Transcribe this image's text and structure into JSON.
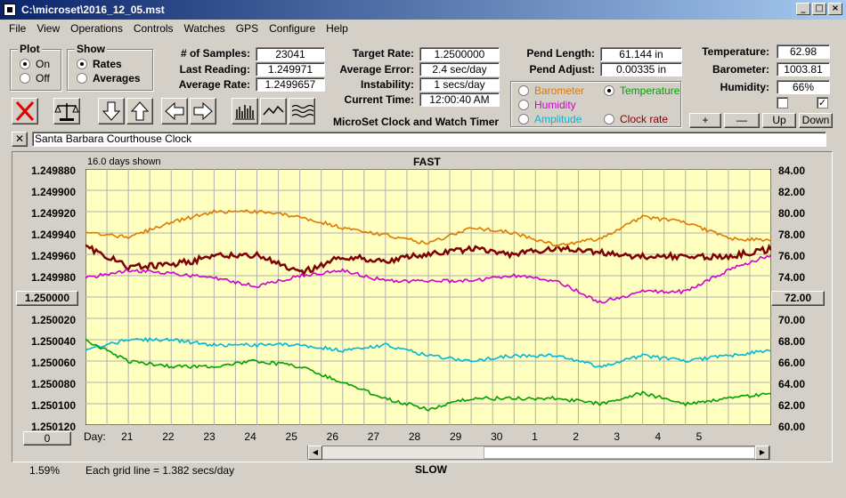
{
  "window": {
    "title": "C:\\microset\\2016_12_05.mst"
  },
  "menu": [
    "File",
    "View",
    "Operations",
    "Controls",
    "Watches",
    "GPS",
    "Configure",
    "Help"
  ],
  "plot_group": {
    "title": "Plot",
    "on_label": "On",
    "off_label": "Off",
    "selected": "On"
  },
  "show_group": {
    "title": "Show",
    "rates_label": "Rates",
    "averages_label": "Averages",
    "selected": "Rates"
  },
  "stats": {
    "samples_label": "# of Samples:",
    "samples": "23041",
    "last_reading_label": "Last Reading:",
    "last_reading": "1.249971",
    "average_rate_label": "Average Rate:",
    "average_rate": "1.2499657",
    "target_rate_label": "Target Rate:",
    "target_rate": "1.2500000",
    "average_error_label": "Average Error:",
    "average_error": "2.4 sec/day",
    "instability_label": "Instability:",
    "instability": "1 secs/day",
    "current_time_label": "Current Time:",
    "current_time": "12:00:40 AM",
    "pend_length_label": "Pend Length:",
    "pend_length": "61.144 in",
    "pend_adjust_label": "Pend Adjust:",
    "pend_adjust": "0.00335 in",
    "temperature_label": "Temperature:",
    "temperature": "62.98",
    "barometer_label": "Barometer:",
    "barometer": "1003.81",
    "humidity_label": "Humidity:",
    "humidity": "66%"
  },
  "app_caption": "MicroSet Clock and Watch Timer",
  "sensor_select": {
    "barometer": "Barometer",
    "temperature": "Temperature",
    "humidity": "Humidity",
    "amplitude": "Amplitude",
    "clock_rate": "Clock rate",
    "selected": "Temperature",
    "colors": {
      "barometer": "#e07800",
      "temperature": "#00a000",
      "humidity": "#d000d0",
      "amplitude": "#00b8d8",
      "clock_rate": "#800000"
    }
  },
  "scale_buttons": {
    "plus": "+",
    "minus": "—",
    "up": "Up",
    "down": "Down"
  },
  "checkboxes": [
    {
      "checked": false
    },
    {
      "checked": true,
      "mark": "✓"
    }
  ],
  "toolbar_icons": [
    "clear-icon",
    "balance-scale-icon",
    "arrow-down-icon",
    "arrow-up-icon",
    "arrow-left-icon",
    "arrow-right-icon",
    "bar-graph-icon",
    "line-graph-icon",
    "wave-graph-icon"
  ],
  "clock_name": {
    "close": "✕",
    "value": "Santa Barbara Courthouse Clock"
  },
  "plot": {
    "days_shown": "16.0 days shown",
    "fast_label": "FAST",
    "slow_label": "SLOW",
    "left_center_button": "1.250000",
    "right_center_button": "72.00",
    "left_ticks": [
      "1.249880",
      "1.249900",
      "1.249920",
      "1.249940",
      "1.249960",
      "1.249980",
      "1.250000",
      "1.250020",
      "1.250040",
      "1.250060",
      "1.250080",
      "1.250100",
      "1.250120"
    ],
    "right_ticks": [
      "84.00",
      "82.00",
      "80.00",
      "78.00",
      "76.00",
      "74.00",
      "72.00",
      "70.00",
      "68.00",
      "66.00",
      "64.00",
      "62.00",
      "60.00"
    ],
    "day_label": "Day:",
    "days": [
      "21",
      "22",
      "23",
      "24",
      "25",
      "26",
      "27",
      "28",
      "29",
      "30",
      "1",
      "2",
      "3",
      "4",
      "5"
    ],
    "grid_caption": "Each grid line = 1.382 secs/day",
    "percent": "1.59%",
    "zero_button": "0",
    "colors": {
      "background": "#ffffc0",
      "grid": "#b0b0b0"
    }
  },
  "chart_data": {
    "type": "line",
    "xlabel": "Day:",
    "x": [
      0,
      1,
      2,
      3,
      4,
      5,
      6,
      7,
      8,
      9,
      10,
      11,
      12,
      13,
      14,
      15,
      16
    ],
    "x_tick_labels": [
      "21",
      "22",
      "23",
      "24",
      "25",
      "26",
      "27",
      "28",
      "29",
      "30",
      "1",
      "2",
      "3",
      "4",
      "5"
    ],
    "ylim_left": [
      1.25012,
      1.24988
    ],
    "ylim_right": [
      60,
      84
    ],
    "grid": true,
    "series": [
      {
        "name": "Clock rate",
        "color": "#800000",
        "axis": "left",
        "values": [
          1.249952,
          1.249972,
          1.24997,
          1.249962,
          1.24996,
          1.249978,
          1.249962,
          1.249966,
          1.24996,
          1.249955,
          1.24996,
          1.249954,
          1.249958,
          1.249962,
          1.249962,
          1.249962,
          1.249955
        ]
      },
      {
        "name": "Barometer",
        "color": "#e07800",
        "axis": "right",
        "values": [
          78.0,
          77.6,
          79.0,
          80.0,
          80.0,
          79.5,
          78.5,
          77.8,
          77.0,
          78.5,
          78.0,
          76.8,
          77.5,
          79.5,
          79.0,
          77.5,
          77.3
        ]
      },
      {
        "name": "Humidity",
        "color": "#d000d0",
        "axis": "right",
        "values": [
          73.8,
          74.5,
          74.2,
          73.8,
          73.0,
          74.0,
          74.5,
          73.5,
          73.5,
          73.5,
          74.0,
          73.5,
          71.5,
          72.5,
          72.5,
          74.5,
          76.0
        ]
      },
      {
        "name": "Amplitude",
        "color": "#00b8d8",
        "axis": "right",
        "values": [
          67.0,
          68.0,
          68.0,
          67.5,
          67.5,
          67.5,
          67.0,
          67.5,
          66.5,
          66.0,
          66.5,
          66.5,
          65.5,
          66.5,
          66.0,
          66.5,
          67.0
        ]
      },
      {
        "name": "Temperature",
        "color": "#00a000",
        "axis": "right",
        "values": [
          68.0,
          66.0,
          65.5,
          65.5,
          66.0,
          65.5,
          64.0,
          62.5,
          61.5,
          62.5,
          62.5,
          62.5,
          62.0,
          63.0,
          62.0,
          62.5,
          63.0
        ]
      }
    ]
  }
}
